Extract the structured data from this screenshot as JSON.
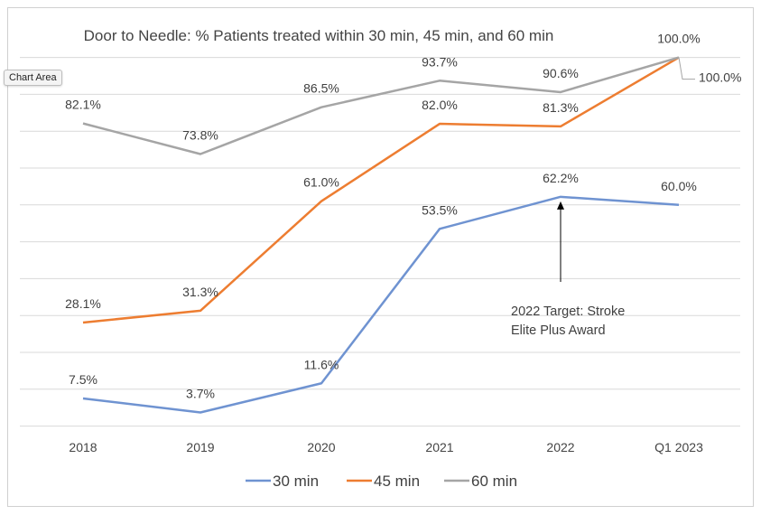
{
  "tooltip": "Chart Area",
  "chart_data": {
    "type": "line",
    "title": "Door to Needle: % Patients treated within 30 min, 45 min, and 60 min",
    "categories": [
      "2018",
      "2019",
      "2020",
      "2021",
      "2022",
      "Q1 2023"
    ],
    "ylim": [
      0,
      100
    ],
    "grid": true,
    "legend_position": "bottom",
    "series": [
      {
        "name": "30 min",
        "color": "#6f93d1",
        "values": [
          7.5,
          3.7,
          11.6,
          53.5,
          62.2,
          60.0
        ],
        "labels": [
          "7.5%",
          "3.7%",
          "11.6%",
          "53.5%",
          "62.2%",
          "60.0%"
        ]
      },
      {
        "name": "45 min",
        "color": "#ed7d31",
        "values": [
          28.1,
          31.3,
          61.0,
          82.0,
          81.3,
          100.0
        ],
        "labels": [
          "28.1%",
          "31.3%",
          "61.0%",
          "82.0%",
          "81.3%",
          "100.0%"
        ]
      },
      {
        "name": "60 min",
        "color": "#a5a5a5",
        "values": [
          82.1,
          73.8,
          86.5,
          93.7,
          90.6,
          100.0
        ],
        "labels": [
          "82.1%",
          "73.8%",
          "86.5%",
          "93.7%",
          "90.6%",
          "100.0%"
        ]
      }
    ],
    "annotation": {
      "lines": [
        "2022 Target: Stroke",
        "Elite Plus Award"
      ],
      "points_to_category": "2022",
      "points_to_series": "30 min"
    }
  }
}
